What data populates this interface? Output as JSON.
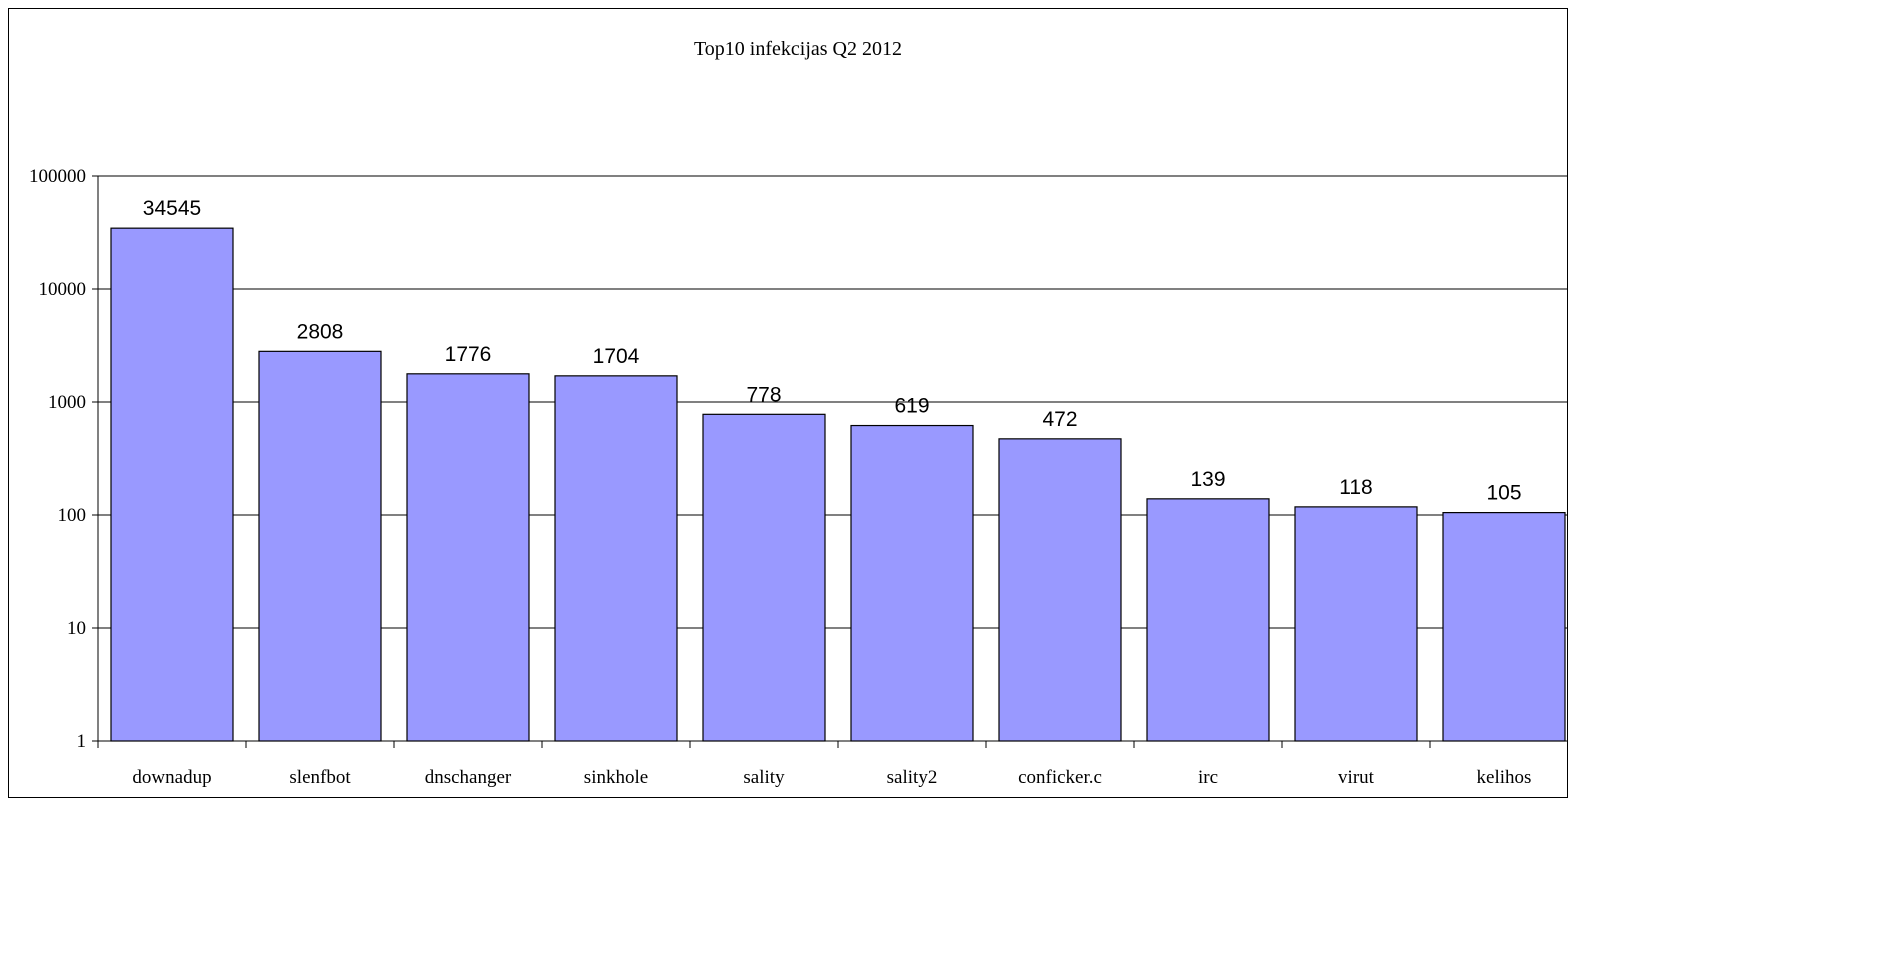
{
  "chart_data": {
    "type": "bar",
    "title": "Top10 infekcijas  Q2 2012",
    "xlabel": "",
    "ylabel": "",
    "yscale": "log",
    "ylim": [
      1,
      100000
    ],
    "yticks": [
      "1",
      "10",
      "100",
      "1000",
      "10000",
      "100000"
    ],
    "grid": true,
    "legend": "none",
    "categories": [
      "downadup",
      "slenfbot",
      "dnschanger",
      "sinkhole",
      "sality",
      "sality2",
      "conficker.c",
      "irc",
      "virut",
      "kelihos"
    ],
    "values": [
      34545,
      2808,
      1776,
      1704,
      778,
      619,
      472,
      139,
      118,
      105
    ],
    "data_labels": [
      "34545",
      "2808",
      "1776",
      "1704",
      "778",
      "619",
      "472",
      "139",
      "118",
      "105"
    ],
    "colors": {
      "bar_fill": "#9999ff",
      "bar_stroke": "#000000",
      "grid": "#000000"
    }
  }
}
